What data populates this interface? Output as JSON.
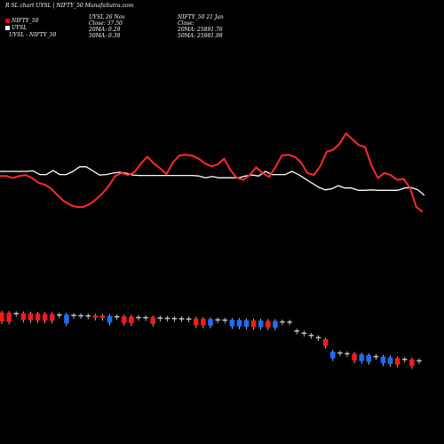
{
  "header": {
    "title": "R                    SL chart UYSL | NIFTY_50 MunafaSutra.com"
  },
  "legend": [
    {
      "label": "NIFTY_50",
      "color": "#ff0000"
    },
    {
      "label": "UYSL",
      "color": "#ffffff"
    },
    {
      "label": "UYSL - NIFTY_50",
      "color": "#ffffff"
    }
  ],
  "info": {
    "uysl_title": "UYSL 26 Nov",
    "uysl_close": "Close: 37.50",
    "uysl_20ma": "20MA: 0.29",
    "uysl_50ma": "50MA: 0.39",
    "nifty_title": "NIFTY_50 21 Jan",
    "nifty_close": "Close:",
    "nifty_20ma": "20MA: 25891.76",
    "nifty_50ma": "50MA: 25981.98"
  },
  "colors": {
    "nifty": "#ff2b2b",
    "uysl": "#ffffff",
    "up": "#1e6cff",
    "down": "#ff1a1a",
    "flat": "#c8c8c8"
  },
  "chart_data": {
    "type": "line",
    "series": [
      {
        "name": "NIFTY_50",
        "values": [
          42,
          42,
          40,
          42,
          43,
          40,
          35,
          33,
          29,
          22,
          16,
          12,
          10,
          10,
          13,
          18,
          24,
          32,
          42,
          45,
          43,
          46,
          55,
          62,
          55,
          50,
          44,
          56,
          63,
          64,
          63,
          60,
          55,
          52,
          54,
          60,
          48,
          40,
          38,
          43,
          51,
          45,
          41,
          51,
          63,
          64,
          62,
          56,
          45,
          43,
          52,
          67,
          69,
          75,
          86,
          80,
          74,
          72,
          53,
          40,
          45,
          43,
          38,
          39,
          30,
          10,
          5
        ]
      },
      {
        "name": "UYSL",
        "values": [
          52,
          52,
          52,
          52,
          52,
          53,
          45,
          45,
          54,
          45,
          45,
          52,
          62,
          62,
          53,
          44,
          45,
          48,
          50,
          48,
          44,
          43,
          43,
          43,
          43,
          43,
          43,
          43,
          43,
          43,
          42,
          38,
          41,
          38,
          38,
          38,
          38,
          42,
          44,
          42,
          52,
          45,
          45,
          45,
          52,
          45,
          36,
          27,
          18,
          12,
          14,
          21,
          16,
          16,
          11,
          11,
          12,
          11,
          11,
          11,
          11,
          16,
          17,
          12,
          0
        ]
      }
    ],
    "volume": [
      {
        "dir": "down",
        "value": 4
      },
      {
        "dir": "down",
        "value": 4
      },
      {
        "dir": "flat",
        "value": 1
      },
      {
        "dir": "down",
        "value": 3
      },
      {
        "dir": "down",
        "value": 3
      },
      {
        "dir": "down",
        "value": 3
      },
      {
        "dir": "down",
        "value": 3
      },
      {
        "dir": "down",
        "value": 3
      },
      {
        "dir": "flat",
        "value": 1
      },
      {
        "dir": "up",
        "value": 4
      },
      {
        "dir": "flat",
        "value": 1
      },
      {
        "dir": "flat",
        "value": 1
      },
      {
        "dir": "flat",
        "value": 1
      },
      {
        "dir": "down",
        "value": 1
      },
      {
        "dir": "down",
        "value": 1
      },
      {
        "dir": "up",
        "value": 3
      },
      {
        "dir": "flat",
        "value": 1
      },
      {
        "dir": "down",
        "value": 3
      },
      {
        "dir": "down",
        "value": 3
      },
      {
        "dir": "flat",
        "value": 1
      },
      {
        "dir": "flat",
        "value": 1
      },
      {
        "dir": "down",
        "value": 3
      },
      {
        "dir": "flat",
        "value": 1
      },
      {
        "dir": "flat",
        "value": 1
      },
      {
        "dir": "flat",
        "value": 1
      },
      {
        "dir": "flat",
        "value": 1
      },
      {
        "dir": "flat",
        "value": 1
      },
      {
        "dir": "down",
        "value": 3
      },
      {
        "dir": "down",
        "value": 3
      },
      {
        "dir": "up",
        "value": 3
      },
      {
        "dir": "flat",
        "value": 1
      },
      {
        "dir": "flat",
        "value": 1
      },
      {
        "dir": "up",
        "value": 3
      },
      {
        "dir": "up",
        "value": 3
      },
      {
        "dir": "up",
        "value": 3
      },
      {
        "dir": "down",
        "value": 3
      },
      {
        "dir": "up",
        "value": 3
      },
      {
        "dir": "down",
        "value": 3
      },
      {
        "dir": "up",
        "value": 3
      },
      {
        "dir": "flat",
        "value": 1
      },
      {
        "dir": "flat",
        "value": 1
      },
      {
        "dir": "flat",
        "value": 1
      },
      {
        "dir": "flat",
        "value": 1
      },
      {
        "dir": "flat",
        "value": 1
      },
      {
        "dir": "flat",
        "value": 1
      },
      {
        "dir": "down",
        "value": 3
      },
      {
        "dir": "up",
        "value": 3
      },
      {
        "dir": "flat",
        "value": 1
      },
      {
        "dir": "flat",
        "value": 1
      },
      {
        "dir": "down",
        "value": 3
      },
      {
        "dir": "up",
        "value": 3
      },
      {
        "dir": "up",
        "value": 3
      },
      {
        "dir": "flat",
        "value": 1
      },
      {
        "dir": "up",
        "value": 3
      },
      {
        "dir": "up",
        "value": 3
      },
      {
        "dir": "down",
        "value": 3
      },
      {
        "dir": "flat",
        "value": 1
      },
      {
        "dir": "down",
        "value": 3
      },
      {
        "dir": "flat",
        "value": 1
      }
    ]
  }
}
